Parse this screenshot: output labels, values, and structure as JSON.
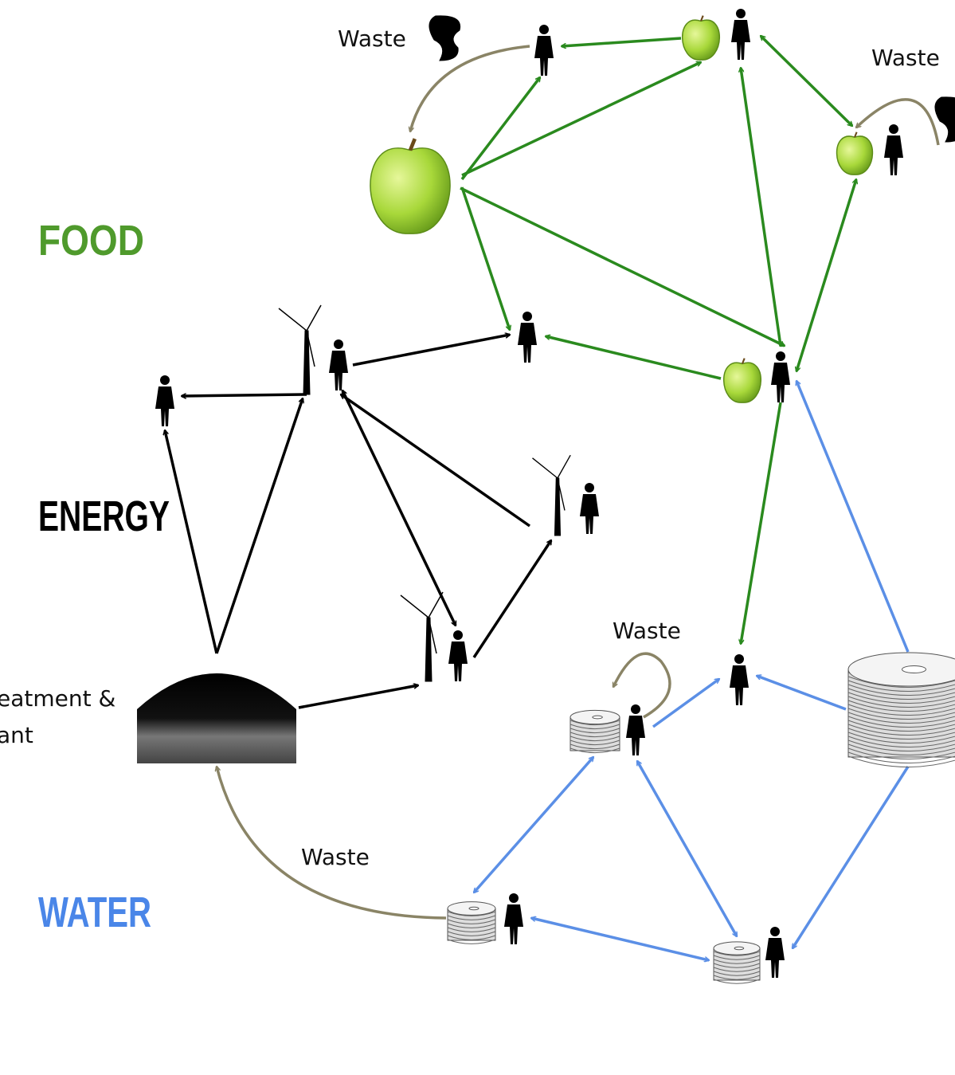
{
  "sections": {
    "food": "FOOD",
    "energy": "ENERGY",
    "water": "WATER"
  },
  "waste_labels": [
    "Waste",
    "Waste",
    "Waste",
    "Waste"
  ],
  "plant_label": [
    "eatment &",
    "ant"
  ]
}
